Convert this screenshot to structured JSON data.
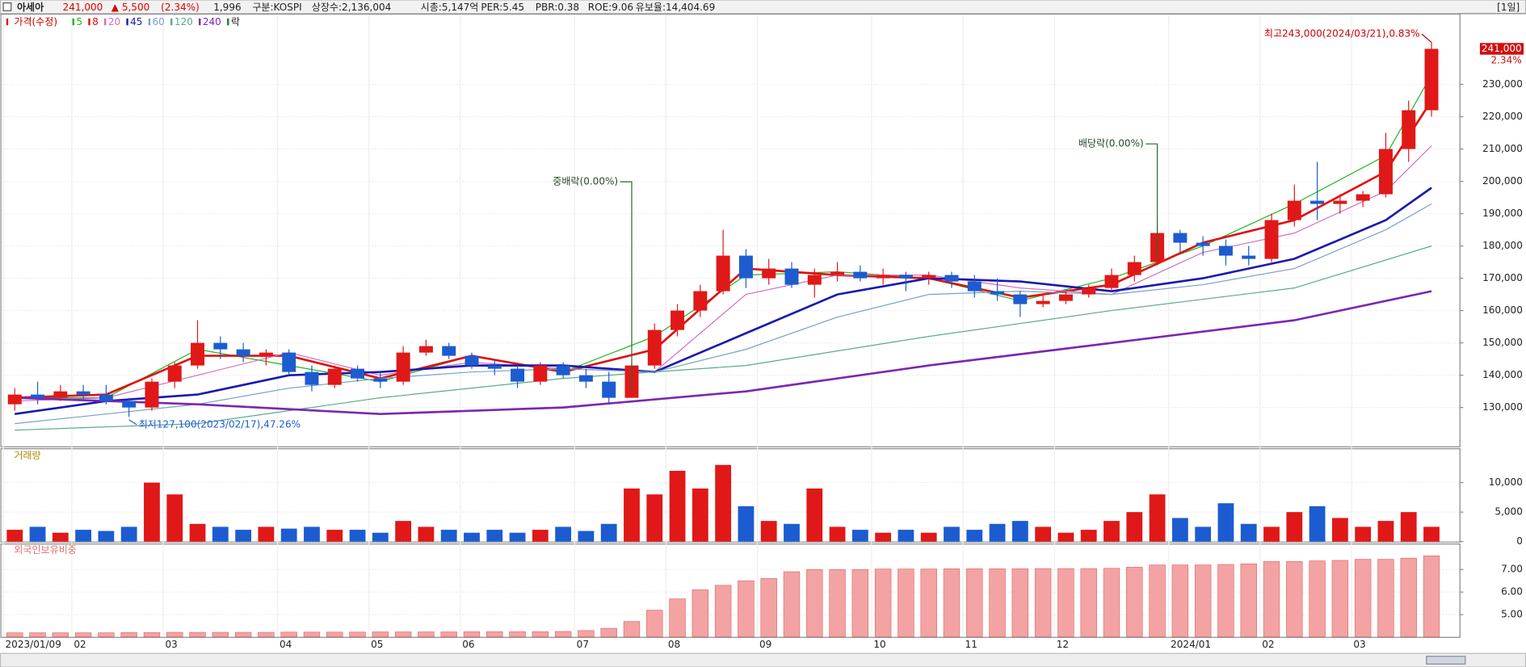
{
  "header": {
    "name": "아세아",
    "price": "241,000",
    "change": "▲ 5,500",
    "change_pct": "(2.34%)",
    "volume": "1,996",
    "market": "구분:KOSPI",
    "shares": "상장수:2,136,004",
    "cap": "시총:5,147억",
    "per": "PER:5.45",
    "pbr": "PBR:0.38",
    "roe": "ROE:9.06",
    "reserve": "유보율:14,404.69",
    "period": "[1일]"
  },
  "chart_data": [
    {
      "type": "candlestick",
      "title": "가격(수정)",
      "up_color": "#e01818",
      "down_color": "#1c5cd0",
      "categories": [
        "2023/01/09",
        null,
        null,
        "02",
        null,
        null,
        null,
        "03",
        null,
        null,
        null,
        null,
        "04",
        null,
        null,
        null,
        "05",
        null,
        null,
        null,
        "06",
        null,
        null,
        null,
        null,
        "07",
        null,
        null,
        null,
        "08",
        null,
        null,
        null,
        "09",
        null,
        null,
        null,
        null,
        "10",
        null,
        null,
        null,
        "11",
        null,
        null,
        null,
        "12",
        null,
        null,
        null,
        null,
        "2024/01",
        null,
        null,
        null,
        "02",
        null,
        null,
        null,
        "03",
        null,
        null,
        null
      ],
      "open": [
        131000,
        134000,
        133000,
        135000,
        134000,
        132000,
        130000,
        138000,
        143000,
        150000,
        148000,
        146000,
        147000,
        141000,
        137000,
        142000,
        139000,
        138000,
        147000,
        149000,
        146000,
        143000,
        142000,
        138000,
        143000,
        140000,
        138000,
        133000,
        143000,
        154000,
        160000,
        166000,
        177000,
        170000,
        173000,
        168000,
        171000,
        172000,
        170000,
        171000,
        170000,
        171000,
        169000,
        166000,
        165000,
        162000,
        163000,
        165000,
        167000,
        171000,
        175000,
        184000,
        181000,
        180000,
        177000,
        176000,
        188000,
        194000,
        193000,
        194000,
        196000,
        210000,
        222000
      ],
      "high": [
        136000,
        138000,
        137000,
        137000,
        137000,
        133000,
        139000,
        144000,
        157000,
        152000,
        150000,
        148000,
        148000,
        143000,
        143000,
        143000,
        141000,
        149000,
        151000,
        150000,
        147000,
        145000,
        143000,
        144000,
        144000,
        142000,
        141000,
        144000,
        156000,
        162000,
        168000,
        185000,
        179000,
        176000,
        175000,
        173000,
        175000,
        174000,
        173000,
        172000,
        172000,
        172000,
        171000,
        170000,
        166000,
        165000,
        166000,
        168000,
        173000,
        177000,
        187000,
        185000,
        183000,
        182000,
        180000,
        190000,
        199000,
        206000,
        196000,
        197000,
        215000,
        225000,
        243000
      ],
      "low": [
        129000,
        131000,
        132000,
        132000,
        131000,
        127100,
        129000,
        136000,
        142000,
        145000,
        144000,
        143000,
        140000,
        135000,
        136000,
        138000,
        136000,
        137000,
        146000,
        145000,
        142000,
        140000,
        136000,
        137000,
        139000,
        136000,
        131500,
        133000,
        142000,
        152000,
        158000,
        165000,
        167000,
        168000,
        167000,
        164000,
        169000,
        169000,
        168000,
        166000,
        168000,
        167000,
        164000,
        163000,
        158000,
        161000,
        162000,
        164000,
        166000,
        169000,
        174000,
        178000,
        177000,
        174000,
        174000,
        175000,
        186000,
        188000,
        190000,
        192000,
        195000,
        206000,
        220000
      ],
      "close": [
        134000,
        133000,
        135000,
        134000,
        132000,
        130000,
        138000,
        143000,
        150000,
        148000,
        146000,
        147000,
        141000,
        137000,
        142000,
        139000,
        138000,
        147000,
        149000,
        146000,
        143000,
        142000,
        138000,
        143000,
        140000,
        138000,
        133000,
        143000,
        154000,
        160000,
        166000,
        177000,
        170000,
        173000,
        168000,
        171000,
        172000,
        170000,
        171000,
        170000,
        171000,
        169000,
        166000,
        165000,
        162000,
        163000,
        165000,
        167000,
        171000,
        175000,
        184000,
        181000,
        180000,
        177000,
        176000,
        188000,
        194000,
        193000,
        194000,
        196000,
        210000,
        222000,
        241000
      ],
      "ma_lines": [
        {
          "name": "5",
          "color": "#22b522",
          "line_width": 1,
          "x": [
            0,
            4,
            8,
            12,
            16,
            20,
            24,
            28,
            32,
            36,
            40,
            44,
            48,
            52,
            56,
            60,
            62
          ],
          "values": [
            133000,
            133000,
            148000,
            143000,
            138000,
            146000,
            141000,
            152000,
            171000,
            172000,
            170000,
            163000,
            170000,
            180000,
            193000,
            208000,
            233000
          ]
        },
        {
          "name": "8",
          "color": "#e01010",
          "line_width": 2.2,
          "x": [
            0,
            4,
            8,
            12,
            16,
            20,
            24,
            28,
            32,
            36,
            40,
            44,
            48,
            52,
            56,
            60,
            62
          ],
          "values": [
            133000,
            134000,
            146000,
            146000,
            139000,
            146000,
            141000,
            148000,
            173000,
            171000,
            170000,
            164000,
            168000,
            181000,
            188000,
            203000,
            225000
          ]
        },
        {
          "name": "20",
          "color": "#d070c0",
          "line_width": 1,
          "x": [
            0,
            4,
            8,
            12,
            16,
            20,
            24,
            28,
            32,
            36,
            40,
            44,
            48,
            52,
            56,
            60,
            62
          ],
          "values": [
            132000,
            133000,
            140000,
            147000,
            140000,
            144000,
            142000,
            141000,
            165000,
            171000,
            171000,
            167000,
            165000,
            178000,
            184000,
            197000,
            211000
          ]
        },
        {
          "name": "45",
          "color": "#1a1ab0",
          "line_width": 2.2,
          "x": [
            0,
            4,
            8,
            12,
            16,
            20,
            24,
            28,
            32,
            36,
            40,
            44,
            48,
            52,
            56,
            60,
            62
          ],
          "values": [
            128000,
            132000,
            134000,
            140000,
            141000,
            143000,
            143000,
            141000,
            153000,
            165000,
            170000,
            169000,
            166000,
            170000,
            176000,
            188000,
            198000
          ]
        },
        {
          "name": "60",
          "color": "#7aa0c8",
          "line_width": 1,
          "x": [
            0,
            4,
            8,
            12,
            16,
            20,
            24,
            28,
            32,
            36,
            40,
            44,
            48,
            52,
            56,
            60,
            62
          ],
          "values": [
            125000,
            128000,
            131000,
            136000,
            139000,
            141000,
            142000,
            141000,
            148000,
            158000,
            165000,
            166000,
            165000,
            168000,
            173000,
            185000,
            193000
          ]
        },
        {
          "name": "120",
          "color": "#5aaa8a",
          "line_width": 1,
          "x": [
            0,
            8,
            16,
            24,
            32,
            40,
            48,
            56,
            62
          ],
          "values": [
            123000,
            125000,
            133000,
            139000,
            143000,
            152000,
            160000,
            167000,
            180000
          ]
        },
        {
          "name": "240",
          "color": "#7a28b0",
          "line_width": 2.2,
          "x": [
            0,
            8,
            16,
            24,
            32,
            40,
            48,
            56,
            62
          ],
          "values": [
            133000,
            131000,
            128000,
            130000,
            135000,
            143000,
            150000,
            157000,
            166000
          ]
        }
      ],
      "event_legend": "락",
      "ylim": [
        118300,
        251600
      ],
      "yticks": [
        {
          "value": 130000,
          "label": "130,000"
        },
        {
          "value": 140000,
          "label": "140,000"
        },
        {
          "value": 150000,
          "label": "150,000"
        },
        {
          "value": 160000,
          "label": "160,000"
        },
        {
          "value": 170000,
          "label": "170,000"
        },
        {
          "value": 180000,
          "label": "180,000"
        },
        {
          "value": 190000,
          "label": "190,000"
        },
        {
          "value": 200000,
          "label": "200,000"
        },
        {
          "value": 210000,
          "label": "210,000"
        },
        {
          "value": 220000,
          "label": "220,000"
        },
        {
          "value": 230000,
          "label": "230,000"
        }
      ],
      "annotations": {
        "high": "최고243,000(2024/03/21),0.83%",
        "low": "최저127,100(2023/02/17),47.26%",
        "event1": "중배락(0.00%)",
        "event2": "배당락(0.00%)",
        "price_tag": "241,000",
        "change_tag": "2.34%"
      }
    },
    {
      "type": "bar",
      "title": "거래량",
      "values": [
        2000,
        2500,
        1500,
        2000,
        1800,
        2500,
        10000,
        8000,
        3000,
        2500,
        2000,
        2500,
        2200,
        2500,
        2000,
        2000,
        1500,
        3500,
        2500,
        2000,
        1500,
        2000,
        1500,
        2000,
        2500,
        1800,
        3000,
        9000,
        8000,
        12000,
        9000,
        13000,
        6000,
        3500,
        3000,
        9000,
        2500,
        2000,
        1500,
        2000,
        1500,
        2500,
        2000,
        3000,
        3500,
        2500,
        1500,
        2000,
        3500,
        5000,
        8000,
        4000,
        2500,
        6500,
        3000,
        2500,
        5000,
        6000,
        4000,
        2500,
        3500,
        5000,
        2500
      ],
      "ylim": [
        0,
        15500
      ],
      "yticks": [
        0,
        {
          "value": 5000,
          "label": "5,000"
        },
        {
          "value": 10000,
          "label": "10,000"
        }
      ]
    },
    {
      "type": "bar",
      "title": "외국인보유비중",
      "color": "#f3a3a3",
      "values": [
        4.2,
        4.2,
        4.2,
        4.2,
        4.2,
        4.21,
        4.21,
        4.22,
        4.22,
        4.22,
        4.22,
        4.22,
        4.23,
        4.23,
        4.23,
        4.23,
        4.24,
        4.24,
        4.24,
        4.24,
        4.25,
        4.25,
        4.25,
        4.25,
        4.26,
        4.3,
        4.4,
        4.7,
        5.2,
        5.7,
        6.1,
        6.3,
        6.5,
        6.6,
        6.9,
        7,
        7,
        7,
        7.02,
        7.02,
        7.02,
        7.03,
        7.03,
        7.03,
        7.03,
        7.04,
        7.04,
        7.04,
        7.05,
        7.1,
        7.2,
        7.2,
        7.2,
        7.22,
        7.25,
        7.35,
        7.35,
        7.38,
        7.4,
        7.45,
        7.45,
        7.5,
        7.6
      ],
      "ylim": [
        4.02,
        8.06
      ],
      "yticks": [
        {
          "value": 5,
          "label": "5.00"
        },
        {
          "value": 6,
          "label": "6.00"
        },
        {
          "value": 7,
          "label": "7.00"
        }
      ]
    }
  ]
}
